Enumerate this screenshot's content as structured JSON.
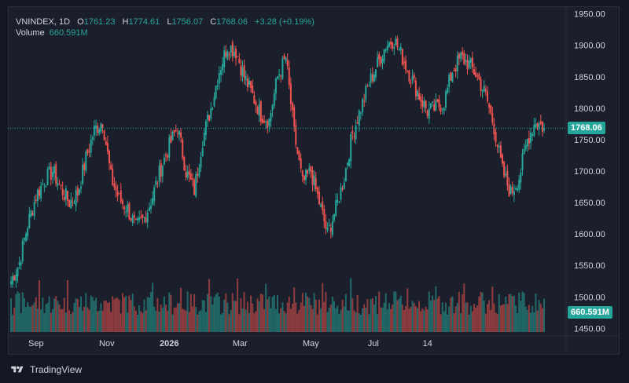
{
  "header": {
    "symbol": "VNINDEX, 1D",
    "open_label": "O",
    "open_value": "1761.23",
    "high_label": "H",
    "high_value": "1774.61",
    "low_label": "L",
    "low_value": "1756.07",
    "close_label": "C",
    "close_value": "1768.06",
    "change": "+3.28 (+0.19%)",
    "volume_label": "Volume",
    "volume_value": "660.591M"
  },
  "price_tag": "1768.06",
  "volume_tag": "660.591M",
  "footer": {
    "brand": "TradingView"
  },
  "colors": {
    "up": "#26a69a",
    "down": "#ef5350",
    "grid": "#2a2e39",
    "text": "#d1d4dc"
  },
  "chart_data": {
    "type": "candlestick",
    "y_axis": {
      "ticks": [
        "1950.00",
        "1900.00",
        "1850.00",
        "1800.00",
        "1750.00",
        "1700.00",
        "1650.00",
        "1600.00",
        "1550.00",
        "1500.00",
        "1450.00"
      ],
      "tick_values": [
        1950,
        1900,
        1850,
        1800,
        1750,
        1700,
        1650,
        1600,
        1550,
        1500,
        1450
      ],
      "ylim": [
        1438,
        1962
      ]
    },
    "x_axis": {
      "labels": [
        "Sep",
        "Nov",
        "2026",
        "Mar",
        "May",
        "Jul",
        "14"
      ],
      "label_weeks": [
        3,
        11.5,
        19,
        27.5,
        36,
        43.5,
        50
      ]
    },
    "last_close": 1768.06,
    "last_volume": "660.591M",
    "weekly_closes": [
      1525,
      1555,
      1615,
      1660,
      1685,
      1700,
      1672,
      1650,
      1665,
      1720,
      1765,
      1780,
      1690,
      1655,
      1640,
      1610,
      1625,
      1660,
      1705,
      1740,
      1770,
      1700,
      1670,
      1750,
      1800,
      1860,
      1900,
      1890,
      1850,
      1820,
      1790,
      1780,
      1850,
      1880,
      1760,
      1680,
      1700,
      1650,
      1600,
      1640,
      1690,
      1760,
      1800,
      1840,
      1870,
      1900,
      1910,
      1880,
      1850,
      1820,
      1795,
      1800,
      1810,
      1860,
      1880,
      1870,
      1850,
      1820,
      1770,
      1700,
      1665,
      1690,
      1750,
      1780,
      1768
    ]
  }
}
